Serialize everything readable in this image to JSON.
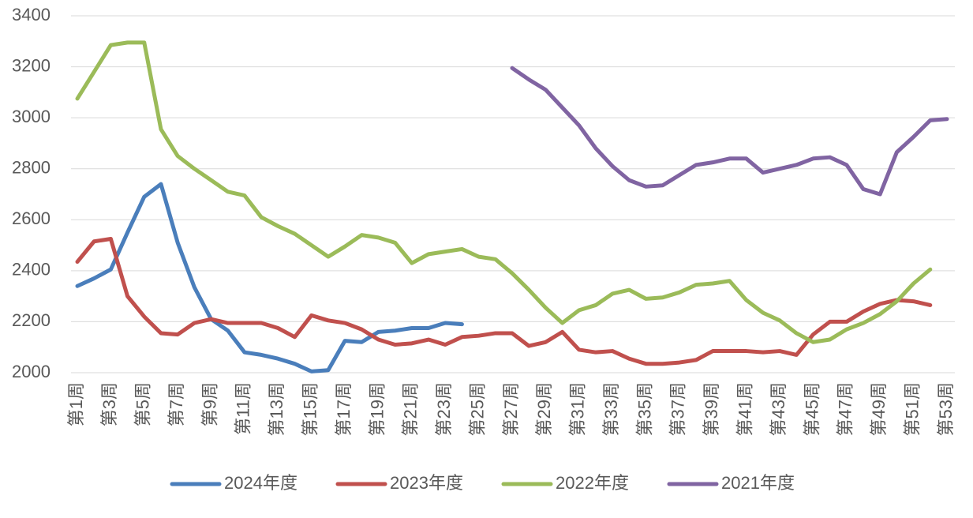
{
  "chart_data": {
    "type": "line",
    "categories": [
      "第1周",
      null,
      "第3周",
      null,
      "第5周",
      null,
      "第7周",
      null,
      "第9周",
      null,
      "第11周",
      null,
      "第13周",
      null,
      "第15周",
      null,
      "第17周",
      null,
      "第19周",
      null,
      "第21周",
      null,
      "第23周",
      null,
      "第25周",
      null,
      "第27周",
      null,
      "第29周",
      null,
      "第31周",
      null,
      "第33周",
      null,
      "第35周",
      null,
      "第37周",
      null,
      "第39周",
      null,
      "第41周",
      null,
      "第43周",
      null,
      "第45周",
      null,
      "第47周",
      null,
      "第49周",
      null,
      "第51周",
      null,
      "第53周"
    ],
    "series": [
      {
        "name": "2024年度",
        "color": "#4a7ebb",
        "values": [
          2340,
          2370,
          2405,
          2550,
          2690,
          2740,
          2510,
          2335,
          2210,
          2165,
          2080,
          2070,
          2055,
          2035,
          2005,
          2010,
          2125,
          2120,
          2160,
          2165,
          2175,
          2175,
          2195,
          2190,
          null,
          null,
          null,
          null,
          null,
          null,
          null,
          null,
          null,
          null,
          null,
          null,
          null,
          null,
          null,
          null,
          null,
          null,
          null,
          null,
          null,
          null,
          null,
          null,
          null,
          null,
          null,
          null,
          null
        ]
      },
      {
        "name": "2023年度",
        "color": "#c0504d",
        "values": [
          2435,
          2515,
          2525,
          2300,
          2220,
          2155,
          2150,
          2195,
          2210,
          2195,
          2195,
          2195,
          2175,
          2140,
          2225,
          2205,
          2195,
          2170,
          2130,
          2110,
          2115,
          2130,
          2110,
          2140,
          2145,
          2155,
          2155,
          2105,
          2120,
          2160,
          2090,
          2080,
          2085,
          2055,
          2035,
          2035,
          2040,
          2050,
          2085,
          2085,
          2085,
          2080,
          2085,
          2070,
          2150,
          2200,
          2200,
          2240,
          2270,
          2285,
          2280,
          2265,
          null
        ]
      },
      {
        "name": "2022年度",
        "color": "#9bbb59",
        "values": [
          3075,
          3180,
          3285,
          3295,
          3295,
          2955,
          2850,
          2800,
          2755,
          2710,
          2695,
          2610,
          2575,
          2545,
          2500,
          2455,
          2495,
          2540,
          2530,
          2510,
          2430,
          2465,
          2475,
          2485,
          2455,
          2445,
          2390,
          2325,
          2255,
          2195,
          2245,
          2265,
          2310,
          2325,
          2290,
          2295,
          2315,
          2345,
          2350,
          2360,
          2285,
          2235,
          2205,
          2155,
          2120,
          2130,
          2170,
          2195,
          2230,
          2280,
          2350,
          2405,
          null
        ]
      },
      {
        "name": "2021年度",
        "color": "#8064a2",
        "values": [
          null,
          null,
          null,
          null,
          null,
          null,
          null,
          null,
          null,
          null,
          null,
          null,
          null,
          null,
          null,
          null,
          null,
          null,
          null,
          null,
          null,
          null,
          null,
          null,
          null,
          null,
          3195,
          3150,
          3110,
          3040,
          2970,
          2880,
          2810,
          2755,
          2730,
          2735,
          2775,
          2815,
          2825,
          2840,
          2840,
          2785,
          2800,
          2815,
          2840,
          2845,
          2815,
          2720,
          2700,
          2865,
          2925,
          2990,
          2995
        ]
      }
    ],
    "ylim": [
      2000,
      3400
    ],
    "yticks": [
      2000,
      2200,
      2400,
      2600,
      2800,
      3000,
      3200,
      3400
    ],
    "grid": true,
    "legend": "bottom"
  }
}
